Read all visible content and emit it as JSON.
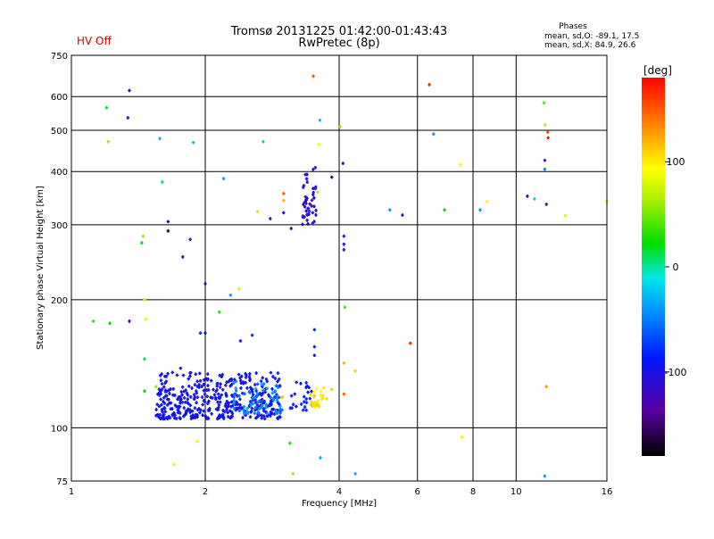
{
  "header": {
    "status": "HV Off",
    "status_color": "#d40000",
    "title_line1": "Tromsø 20131225 01:42:00-01:43:43",
    "title_line2": "RwPretec (8p)",
    "stats_title": "Phases",
    "stats_o": "mean, sd,O: -89.1, 17.5",
    "stats_x": "mean, sd,X:  84.9, 26.6"
  },
  "chart_data": {
    "type": "scatter",
    "xlabel": "Frequency [MHz]",
    "ylabel": "Stationary phase Virtual Height [km]",
    "xscale": "log",
    "yscale": "log",
    "xlim": [
      1,
      16
    ],
    "ylim": [
      75,
      750
    ],
    "xticks": [
      1,
      2,
      4,
      6,
      8,
      10,
      16
    ],
    "xtick_labels": [
      "1",
      "2",
      "4",
      "6",
      "8",
      "10",
      "16"
    ],
    "yticks": [
      75,
      100,
      200,
      300,
      400,
      500,
      600,
      750
    ],
    "ytick_labels": [
      "75",
      "100",
      "200",
      "300",
      "400",
      "500",
      "600",
      "750"
    ],
    "grid": true,
    "colorbar": {
      "label": "[deg]",
      "range": [
        -180,
        180
      ],
      "ticks": [
        100,
        0,
        -100
      ],
      "tick_labels": [
        "100",
        "0",
        "-100"
      ]
    },
    "points": [
      {
        "x": 1.35,
        "y": 620,
        "phase": -105
      },
      {
        "x": 1.34,
        "y": 535,
        "phase": -110
      },
      {
        "x": 1.2,
        "y": 565,
        "phase": 15
      },
      {
        "x": 1.21,
        "y": 470,
        "phase": 60
      },
      {
        "x": 1.58,
        "y": 478,
        "phase": -30
      },
      {
        "x": 1.88,
        "y": 468,
        "phase": -30
      },
      {
        "x": 1.6,
        "y": 378,
        "phase": 5
      },
      {
        "x": 1.65,
        "y": 305,
        "phase": -150
      },
      {
        "x": 1.65,
        "y": 290,
        "phase": -170
      },
      {
        "x": 1.85,
        "y": 277,
        "phase": -120
      },
      {
        "x": 1.78,
        "y": 252,
        "phase": -140
      },
      {
        "x": 1.45,
        "y": 282,
        "phase": 60
      },
      {
        "x": 1.44,
        "y": 272,
        "phase": 20
      },
      {
        "x": 1.46,
        "y": 200,
        "phase": 70
      },
      {
        "x": 1.47,
        "y": 180,
        "phase": 80
      },
      {
        "x": 1.35,
        "y": 178,
        "phase": -130
      },
      {
        "x": 1.22,
        "y": 176,
        "phase": 20
      },
      {
        "x": 1.46,
        "y": 145,
        "phase": 10
      },
      {
        "x": 1.46,
        "y": 122,
        "phase": 20
      },
      {
        "x": 1.55,
        "y": 125,
        "phase": 60
      },
      {
        "x": 1.76,
        "y": 138,
        "phase": -100
      },
      {
        "x": 2.0,
        "y": 218,
        "phase": -110
      },
      {
        "x": 2.2,
        "y": 385,
        "phase": -40
      },
      {
        "x": 2.28,
        "y": 205,
        "phase": -40
      },
      {
        "x": 2.15,
        "y": 187,
        "phase": 30
      },
      {
        "x": 2.38,
        "y": 212,
        "phase": 80
      },
      {
        "x": 2.62,
        "y": 322,
        "phase": 110
      },
      {
        "x": 2.7,
        "y": 470,
        "phase": -20
      },
      {
        "x": 2.8,
        "y": 310,
        "phase": -110
      },
      {
        "x": 3.0,
        "y": 320,
        "phase": -110
      },
      {
        "x": 3.0,
        "y": 342,
        "phase": 120
      },
      {
        "x": 3.0,
        "y": 355,
        "phase": 150
      },
      {
        "x": 3.12,
        "y": 294,
        "phase": -140
      },
      {
        "x": 3.5,
        "y": 670,
        "phase": 150
      },
      {
        "x": 3.62,
        "y": 528,
        "phase": -30
      },
      {
        "x": 3.6,
        "y": 463,
        "phase": 90
      },
      {
        "x": 3.58,
        "y": 358,
        "phase": 110
      },
      {
        "x": 3.85,
        "y": 388,
        "phase": -150
      },
      {
        "x": 4.08,
        "y": 418,
        "phase": -110
      },
      {
        "x": 4.02,
        "y": 510,
        "phase": 60
      },
      {
        "x": 4.1,
        "y": 282,
        "phase": -100
      },
      {
        "x": 4.1,
        "y": 270,
        "phase": -100
      },
      {
        "x": 4.1,
        "y": 262,
        "phase": -100
      },
      {
        "x": 4.12,
        "y": 192,
        "phase": 40
      },
      {
        "x": 3.52,
        "y": 170,
        "phase": -80
      },
      {
        "x": 3.52,
        "y": 155,
        "phase": -100
      },
      {
        "x": 3.52,
        "y": 148,
        "phase": -90
      },
      {
        "x": 4.1,
        "y": 142,
        "phase": 120
      },
      {
        "x": 4.35,
        "y": 136,
        "phase": 110
      },
      {
        "x": 4.1,
        "y": 120,
        "phase": 150
      },
      {
        "x": 3.85,
        "y": 123,
        "phase": 110
      },
      {
        "x": 3.68,
        "y": 119,
        "phase": 80
      },
      {
        "x": 3.1,
        "y": 92,
        "phase": 30
      },
      {
        "x": 3.15,
        "y": 78,
        "phase": 60
      },
      {
        "x": 3.63,
        "y": 85,
        "phase": -30
      },
      {
        "x": 4.35,
        "y": 78,
        "phase": -30
      },
      {
        "x": 2.95,
        "y": 125,
        "phase": 60
      },
      {
        "x": 2.98,
        "y": 118,
        "phase": 120
      },
      {
        "x": 2.4,
        "y": 160,
        "phase": -100
      },
      {
        "x": 2.55,
        "y": 165,
        "phase": -80
      },
      {
        "x": 2.0,
        "y": 167,
        "phase": -90
      },
      {
        "x": 1.95,
        "y": 167,
        "phase": -80
      },
      {
        "x": 1.92,
        "y": 93,
        "phase": 100
      },
      {
        "x": 1.7,
        "y": 82,
        "phase": 100
      },
      {
        "x": 1.12,
        "y": 178,
        "phase": 30
      },
      {
        "x": 5.2,
        "y": 325,
        "phase": -40
      },
      {
        "x": 5.55,
        "y": 316,
        "phase": -130
      },
      {
        "x": 5.78,
        "y": 158,
        "phase": 170
      },
      {
        "x": 6.38,
        "y": 640,
        "phase": 170
      },
      {
        "x": 6.52,
        "y": 490,
        "phase": -40
      },
      {
        "x": 6.9,
        "y": 325,
        "phase": 20
      },
      {
        "x": 7.5,
        "y": 415,
        "phase": 90
      },
      {
        "x": 7.55,
        "y": 95,
        "phase": 100
      },
      {
        "x": 8.3,
        "y": 325,
        "phase": -40
      },
      {
        "x": 8.6,
        "y": 340,
        "phase": 100
      },
      {
        "x": 10.6,
        "y": 350,
        "phase": -140
      },
      {
        "x": 11.0,
        "y": 345,
        "phase": -20
      },
      {
        "x": 11.7,
        "y": 335,
        "phase": -120
      },
      {
        "x": 11.6,
        "y": 425,
        "phase": -110
      },
      {
        "x": 11.6,
        "y": 405,
        "phase": -50
      },
      {
        "x": 11.55,
        "y": 580,
        "phase": 40
      },
      {
        "x": 11.62,
        "y": 515,
        "phase": 110
      },
      {
        "x": 11.78,
        "y": 495,
        "phase": 160
      },
      {
        "x": 11.8,
        "y": 480,
        "phase": 170
      },
      {
        "x": 11.7,
        "y": 125,
        "phase": 130
      },
      {
        "x": 11.6,
        "y": 77,
        "phase": -40
      },
      {
        "x": 12.9,
        "y": 315,
        "phase": 80
      },
      {
        "x": 16.0,
        "y": 340,
        "phase": 80
      }
    ],
    "clusters": [
      {
        "x_range": [
          1.55,
          2.95
        ],
        "y_range": [
          105,
          135
        ],
        "phase_range": [
          -110,
          -85
        ],
        "count": 420,
        "seed": 11
      },
      {
        "x_range": [
          2.3,
          2.95
        ],
        "y_range": [
          108,
          130
        ],
        "phase_range": [
          -60,
          -35
        ],
        "count": 55,
        "seed": 23
      },
      {
        "x_range": [
          3.3,
          3.55
        ],
        "y_range": [
          300,
          410
        ],
        "phase_range": [
          -120,
          -95
        ],
        "count": 45,
        "seed": 37
      },
      {
        "x_range": [
          3.1,
          3.55
        ],
        "y_range": [
          110,
          128
        ],
        "phase_range": [
          -100,
          -80
        ],
        "count": 25,
        "seed": 41
      },
      {
        "x_range": [
          3.45,
          3.75
        ],
        "y_range": [
          112,
          125
        ],
        "phase_range": [
          95,
          120
        ],
        "count": 25,
        "seed": 53
      },
      {
        "x_range": [
          2.6,
          3.0
        ],
        "y_range": [
          110,
          128
        ],
        "phase_range": [
          -60,
          -30
        ],
        "count": 12,
        "seed": 61
      }
    ]
  }
}
